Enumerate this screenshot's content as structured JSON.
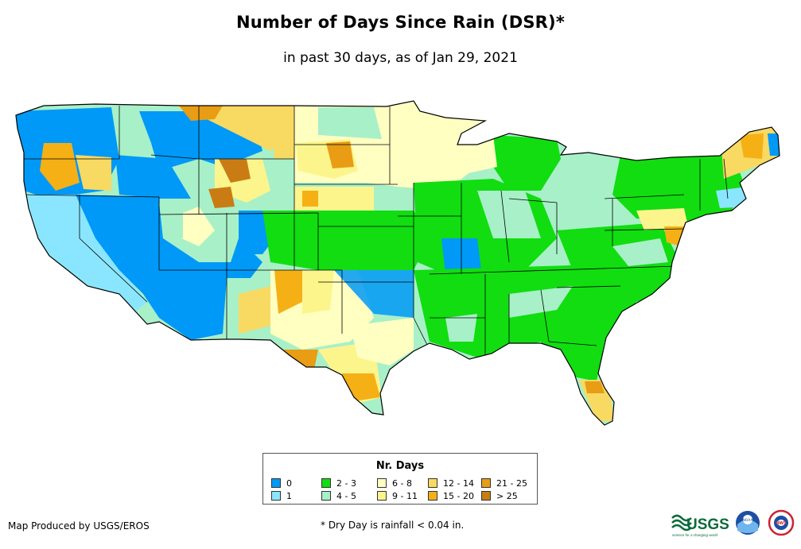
{
  "title": "Number of Days Since Rain (DSR)*",
  "subtitle": "in past 30 days, as of Jan 29, 2021",
  "legend": {
    "title": "Nr. Days",
    "items": [
      {
        "label": "0",
        "color": "#0099f7"
      },
      {
        "label": "1",
        "color": "#8ae6ff"
      },
      {
        "label": "2 - 3",
        "color": "#11dd11"
      },
      {
        "label": "4 - 5",
        "color": "#a8f0c8"
      },
      {
        "label": "6 - 8",
        "color": "#ffffc2"
      },
      {
        "label": "9 - 11",
        "color": "#fcf58c"
      },
      {
        "label": "12 - 14",
        "color": "#f8d962"
      },
      {
        "label": "15 - 20",
        "color": "#f5b016"
      },
      {
        "label": "21 - 25",
        "color": "#e89d14"
      },
      {
        "label": "> 25",
        "color": "#c97c14"
      }
    ]
  },
  "footer": {
    "producer": "Map Produced by USGS/EROS",
    "footnote": "* Dry Day is rainfall < 0.04 in."
  },
  "logos": [
    {
      "name": "usgs-logo",
      "text": "USGS",
      "tagline": "science for a changing world"
    },
    {
      "name": "noaa-logo",
      "text": "NOAA"
    },
    {
      "name": "nws-logo",
      "text": "NWS"
    }
  ]
}
